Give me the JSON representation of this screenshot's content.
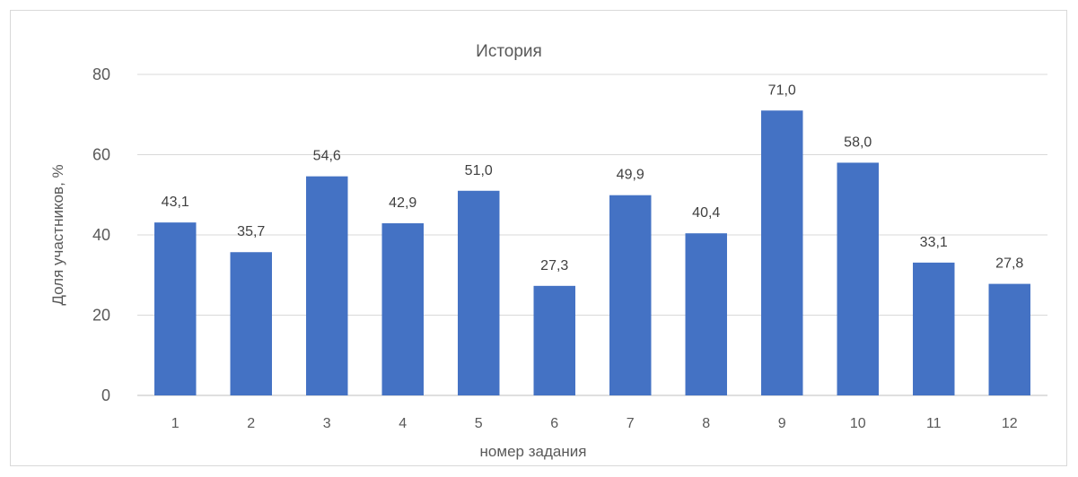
{
  "chart_data": {
    "type": "bar",
    "title": "История",
    "xlabel": "номер задания",
    "ylabel": "Доля участников, %",
    "categories": [
      "1",
      "2",
      "3",
      "4",
      "5",
      "6",
      "7",
      "8",
      "9",
      "10",
      "11",
      "12"
    ],
    "values": [
      43.1,
      35.7,
      54.6,
      42.9,
      51.0,
      27.3,
      49.9,
      40.4,
      71.0,
      58.0,
      33.1,
      27.8
    ],
    "data_labels": [
      "43,1",
      "35,7",
      "54,6",
      "42,9",
      "51,0",
      "27,3",
      "49,9",
      "40,4",
      "71,0",
      "58,0",
      "33,1",
      "27,8"
    ],
    "ylim": [
      0,
      80
    ],
    "yticks": [
      "0",
      "20",
      "40",
      "60",
      "80"
    ],
    "ytick_values": [
      0,
      20,
      40,
      60,
      80
    ],
    "grid": true,
    "bar_color": "#4472C4"
  }
}
